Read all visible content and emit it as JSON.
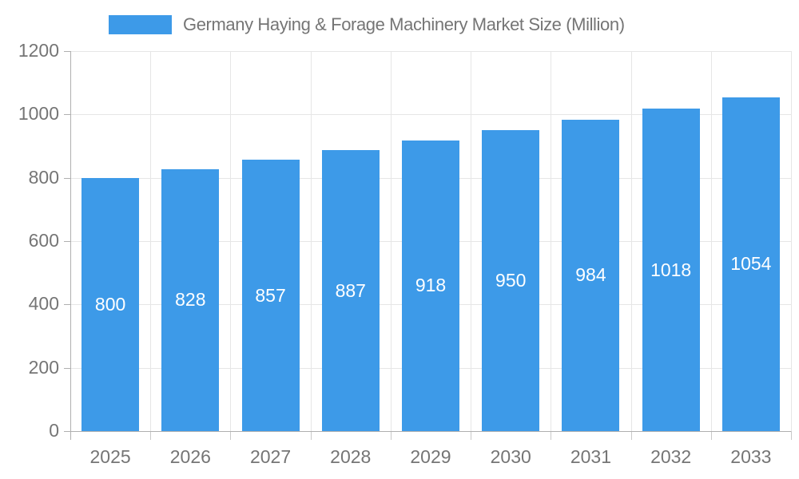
{
  "legend": {
    "series_label": "Germany Haying & Forage Machinery Market Size (Million)"
  },
  "colors": {
    "bar": "#3d9ae8",
    "grid": "#e6e6e6",
    "axis": "#b0b0b0",
    "tick_minor": "#c9c9c9",
    "axis_label": "#757575",
    "bar_label": "#ffffff",
    "background": "#ffffff"
  },
  "chart_data": {
    "type": "bar",
    "title": "Germany Haying & Forage Machinery Market Size (Million)",
    "categories": [
      "2025",
      "2026",
      "2027",
      "2028",
      "2029",
      "2030",
      "2031",
      "2032",
      "2033"
    ],
    "values": [
      800,
      828,
      857,
      887,
      918,
      950,
      984,
      1018,
      1054
    ],
    "xlabel": "",
    "ylabel": "",
    "ylim": [
      0,
      1200
    ],
    "yticks": [
      0,
      200,
      400,
      600,
      800,
      1000,
      1200
    ],
    "grid": true,
    "legend_position": "top",
    "bar_value_labels": true
  }
}
